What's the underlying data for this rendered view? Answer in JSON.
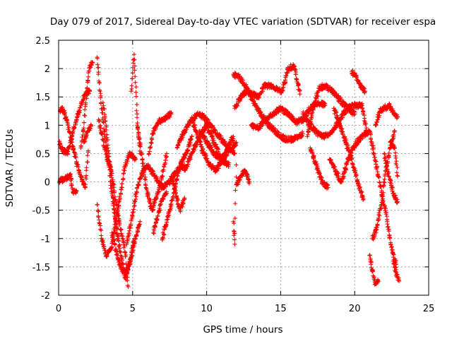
{
  "chart_data": {
    "type": "scatter",
    "title": "Day 079 of 2017, Sidereal Day-to-day VTEC variation (SDTVAR) for receiver espa",
    "xlabel": "GPS time / hours",
    "ylabel": "SDTVAR / TECUs",
    "xlim": [
      0,
      25
    ],
    "ylim": [
      -2,
      2.5
    ],
    "xticks": [
      0,
      5,
      10,
      15,
      20,
      25
    ],
    "xtick_labels": [
      "0",
      "5",
      "10",
      "15",
      "20",
      "25"
    ],
    "yticks": [
      -2,
      -1.5,
      -1,
      -0.5,
      0,
      0.5,
      1,
      1.5,
      2,
      2.5
    ],
    "ytick_labels": [
      "-2",
      "-1.5",
      "-1",
      "-0.5",
      "0",
      "0.5",
      "1",
      "1.5",
      "2",
      "2.5"
    ],
    "grid": true,
    "marker": "+",
    "marker_color": "#ff0000",
    "tracks": [
      {
        "x": [
          0.0,
          0.3,
          0.6,
          0.9,
          1.2,
          1.5,
          1.8,
          2.0
        ],
        "y": [
          1.25,
          1.28,
          1.05,
          0.7,
          0.35,
          0.1,
          -0.1,
          0.55
        ]
      },
      {
        "x": [
          0.0,
          0.3,
          0.6,
          0.9,
          1.2,
          1.5,
          1.8,
          2.1
        ],
        "y": [
          0.7,
          0.55,
          0.5,
          0.8,
          1.1,
          1.35,
          1.55,
          1.6
        ]
      },
      {
        "x": [
          0.0,
          0.4,
          0.8,
          1.0,
          1.2
        ],
        "y": [
          0.0,
          0.05,
          0.1,
          -0.2,
          -0.15
        ]
      },
      {
        "x": [
          1.5,
          1.7,
          1.9,
          2.1,
          2.3
        ],
        "y": [
          0.6,
          0.95,
          1.6,
          2.05,
          2.1
        ]
      },
      {
        "x": [
          1.7,
          2.0,
          2.2
        ],
        "y": [
          0.7,
          0.9,
          1.0
        ]
      },
      {
        "x": [
          2.6,
          2.8,
          3.0,
          3.3,
          3.6,
          3.9,
          4.2,
          4.5,
          4.8,
          5.1
        ],
        "y": [
          2.2,
          1.6,
          1.1,
          0.45,
          -0.2,
          -0.8,
          -1.3,
          -1.7,
          -1.4,
          -1.0
        ]
      },
      {
        "x": [
          2.6,
          2.9,
          3.2,
          3.5,
          3.8,
          4.2,
          4.5,
          4.8,
          5.2
        ],
        "y": [
          -0.4,
          -1.0,
          -1.3,
          -1.2,
          -0.8,
          -0.2,
          0.3,
          0.5,
          0.4
        ]
      },
      {
        "x": [
          2.7,
          3.0,
          3.3,
          3.6,
          3.9,
          4.2,
          4.5,
          4.7
        ],
        "y": [
          1.1,
          0.75,
          0.4,
          0.15,
          -0.4,
          -0.85,
          -1.25,
          -1.85
        ]
      },
      {
        "x": [
          3.0,
          3.2,
          3.4,
          3.6,
          3.8,
          4.0
        ],
        "y": [
          1.4,
          1.0,
          0.5,
          0.0,
          -0.55,
          -1.0
        ]
      },
      {
        "x": [
          3.6,
          4.0,
          4.3,
          4.6,
          4.9,
          5.2,
          5.5
        ],
        "y": [
          -0.9,
          -1.35,
          -1.55,
          -1.6,
          -1.35,
          -1.0,
          -0.7
        ]
      },
      {
        "x": [
          4.6,
          5.0,
          5.3,
          5.7,
          6.0,
          6.5,
          7.0,
          7.5,
          8.0,
          8.5
        ],
        "y": [
          -1.1,
          -0.6,
          -0.1,
          0.2,
          0.3,
          0.1,
          -0.1,
          0.0,
          0.2,
          0.3
        ]
      },
      {
        "x": [
          4.9,
          5.1,
          5.3,
          5.5
        ],
        "y": [
          1.6,
          2.25,
          1.2,
          0.5
        ]
      },
      {
        "x": [
          5.3,
          5.6,
          5.9,
          6.3,
          6.7,
          7.0,
          7.3
        ],
        "y": [
          1.0,
          0.5,
          -0.1,
          -0.5,
          -0.2,
          0.1,
          0.5
        ]
      },
      {
        "x": [
          6.1,
          6.4,
          6.7,
          7.0,
          7.3,
          7.6
        ],
        "y": [
          0.5,
          0.9,
          1.05,
          1.1,
          1.15,
          1.2
        ]
      },
      {
        "x": [
          6.4,
          6.7,
          7.0,
          7.3
        ],
        "y": [
          -0.9,
          -0.6,
          -0.3,
          -0.2
        ]
      },
      {
        "x": [
          7.0,
          7.4,
          7.8,
          8.1,
          8.4,
          8.7,
          9.0
        ],
        "y": [
          -1.0,
          -0.6,
          -0.2,
          0.2,
          0.4,
          0.55,
          0.8
        ]
      },
      {
        "x": [
          7.6,
          7.9,
          8.2,
          8.5
        ],
        "y": [
          0.1,
          -0.2,
          -0.5,
          -0.3
        ]
      },
      {
        "x": [
          8.0,
          8.5,
          9.0,
          9.5,
          10.0,
          10.5,
          11.0,
          11.5,
          11.9
        ],
        "y": [
          0.6,
          0.9,
          1.1,
          1.2,
          1.1,
          0.9,
          0.75,
          0.6,
          0.5
        ]
      },
      {
        "x": [
          8.5,
          9.0,
          9.5,
          10.0,
          10.5,
          11.0,
          11.5
        ],
        "y": [
          0.2,
          0.5,
          0.8,
          1.0,
          0.7,
          0.4,
          0.3
        ]
      },
      {
        "x": [
          9.0,
          9.4,
          9.8,
          10.2,
          10.6,
          11.0,
          11.4,
          11.8
        ],
        "y": [
          1.1,
          0.8,
          0.5,
          0.3,
          0.2,
          0.35,
          0.6,
          0.8
        ]
      },
      {
        "x": [
          9.5,
          10.0,
          10.5,
          11.0,
          11.5,
          12.0
        ],
        "y": [
          0.9,
          0.7,
          0.5,
          0.4,
          0.55,
          0.7
        ]
      },
      {
        "x": [
          11.8,
          12.2,
          12.6,
          13.0,
          13.4,
          13.8,
          14.2,
          14.6,
          15.0,
          15.4,
          15.8,
          16.2,
          16.5
        ],
        "y": [
          1.9,
          1.85,
          1.7,
          1.5,
          1.3,
          1.15,
          1.0,
          0.9,
          0.8,
          0.75,
          0.75,
          0.8,
          0.85
        ]
      },
      {
        "x": [
          11.9,
          12.3,
          12.7,
          13.1,
          13.5,
          13.9,
          14.3,
          14.7,
          15.1,
          15.5,
          15.9,
          16.3
        ],
        "y": [
          1.3,
          1.5,
          1.6,
          1.55,
          1.5,
          1.7,
          1.7,
          1.65,
          1.6,
          2.0,
          2.05,
          1.55
        ]
      },
      {
        "x": [
          12.0,
          12.3,
          12.6,
          12.9
        ],
        "y": [
          -0.05,
          0.1,
          0.2,
          0.0
        ]
      },
      {
        "x": [
          11.8,
          11.9,
          12.0
        ],
        "y": [
          -0.7,
          -1.1,
          0.3
        ]
      },
      {
        "x": [
          13.0,
          13.5,
          14.0,
          14.5,
          15.0,
          15.5,
          16.0,
          16.5,
          17.0,
          17.5,
          18.0
        ],
        "y": [
          1.0,
          0.95,
          1.1,
          1.2,
          1.3,
          1.2,
          1.05,
          1.1,
          1.3,
          1.4,
          1.35
        ]
      },
      {
        "x": [
          16.5,
          17.0,
          17.5,
          18.0,
          18.5,
          19.0,
          19.5,
          20.0,
          20.5,
          20.8
        ],
        "y": [
          1.2,
          1.0,
          0.85,
          0.8,
          0.9,
          1.1,
          1.3,
          1.35,
          1.35,
          0.9
        ]
      },
      {
        "x": [
          16.8,
          17.2,
          17.6,
          18.0,
          18.5,
          19.0,
          19.5,
          20.0
        ],
        "y": [
          0.8,
          1.3,
          1.65,
          1.7,
          1.6,
          1.45,
          1.3,
          1.2
        ]
      },
      {
        "x": [
          17.0,
          17.4,
          17.8,
          18.2
        ],
        "y": [
          0.6,
          0.3,
          0.0,
          -0.1
        ]
      },
      {
        "x": [
          18.3,
          18.7,
          19.1,
          19.5,
          19.9,
          20.3,
          20.7,
          21.0
        ],
        "y": [
          0.4,
          0.2,
          0.0,
          0.35,
          0.6,
          0.75,
          0.85,
          0.9
        ]
      },
      {
        "x": [
          18.6,
          19.0,
          19.4,
          19.8,
          20.2,
          20.6
        ],
        "y": [
          1.3,
          1.0,
          0.7,
          0.4,
          0.0,
          -0.3
        ]
      },
      {
        "x": [
          19.8,
          20.1,
          20.4,
          20.7
        ],
        "y": [
          1.95,
          1.85,
          1.7,
          1.6
        ]
      },
      {
        "x": [
          21.0,
          21.2,
          21.4,
          21.6
        ],
        "y": [
          -1.3,
          -1.55,
          -1.8,
          -1.75
        ]
      },
      {
        "x": [
          21.0,
          21.3,
          21.6,
          21.9,
          22.2,
          22.5,
          22.8
        ],
        "y": [
          0.9,
          0.5,
          0.1,
          -0.3,
          -0.7,
          -1.2,
          -1.45
        ]
      },
      {
        "x": [
          21.2,
          21.5,
          21.8,
          22.1,
          22.4,
          22.7
        ],
        "y": [
          -1.0,
          -0.8,
          -0.4,
          0.2,
          0.6,
          0.9
        ]
      },
      {
        "x": [
          21.4,
          21.7,
          22.0,
          22.3,
          22.6,
          22.9
        ],
        "y": [
          1.0,
          1.25,
          1.3,
          1.35,
          1.25,
          1.15
        ]
      },
      {
        "x": [
          22.0,
          22.3,
          22.6,
          22.9
        ],
        "y": [
          0.5,
          0.1,
          -0.2,
          -0.35
        ]
      },
      {
        "x": [
          22.4,
          22.7,
          22.9
        ],
        "y": [
          0.7,
          0.6,
          0.1
        ]
      },
      {
        "x": [
          22.6,
          22.8,
          23.0
        ],
        "y": [
          -1.4,
          -1.6,
          -1.75
        ]
      }
    ]
  }
}
